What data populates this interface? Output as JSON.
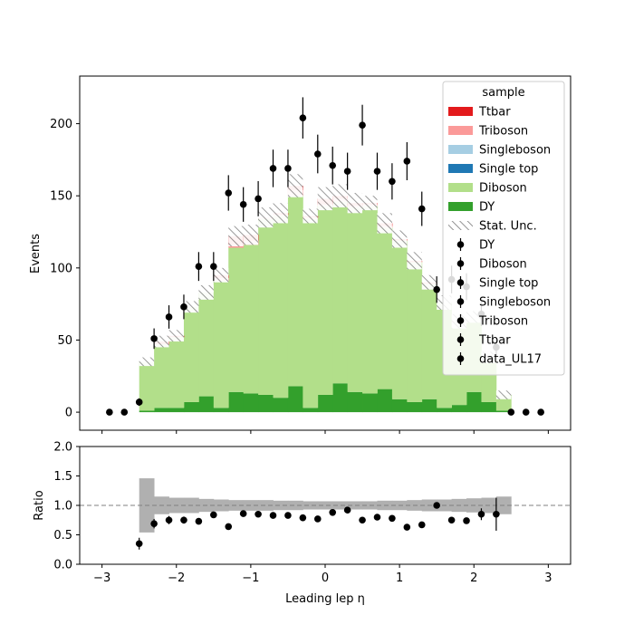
{
  "chart_data": {
    "type": "bar",
    "main": {
      "ylabel": "Events",
      "xlim": [
        -3.3,
        3.3
      ],
      "ylim": [
        -12.5,
        233
      ],
      "yticks": [
        0,
        50,
        100,
        150,
        200
      ],
      "bin_edges": [
        -2.5,
        -2.3,
        -2.1,
        -1.9,
        -1.7,
        -1.5,
        -1.3,
        -1.1,
        -0.9,
        -0.7,
        -0.5,
        -0.3,
        -0.1,
        0.1,
        0.3,
        0.5,
        0.7,
        0.9,
        1.1,
        1.3,
        1.5,
        1.7,
        1.9,
        2.1,
        2.3,
        2.5
      ],
      "stack": [
        {
          "name": "DY",
          "color": "#33a02c",
          "values": [
            1,
            3,
            3,
            7,
            11,
            3,
            14,
            13,
            12,
            10,
            18,
            3,
            12,
            20,
            14,
            13,
            16,
            9,
            7,
            9,
            3,
            5,
            14,
            7,
            1
          ]
        },
        {
          "name": "Diboson",
          "color": "#b2df8a",
          "values": [
            34,
            44,
            49,
            66,
            72,
            88,
            100,
            103,
            122,
            126,
            132,
            131,
            131,
            126,
            128,
            130,
            112,
            110,
            97,
            80,
            73,
            57,
            51,
            31,
            11
          ]
        },
        {
          "name": "Single top",
          "color": "#1f78b4",
          "values": [
            0,
            0,
            0,
            0,
            0,
            0,
            0,
            0,
            0,
            0,
            0,
            0,
            0,
            0,
            0,
            0,
            0,
            0,
            0,
            0,
            0,
            0,
            0,
            0,
            0
          ]
        },
        {
          "name": "Singleboson",
          "color": "#a6cee3",
          "values": [
            0,
            0,
            0,
            0,
            0,
            0,
            0,
            0,
            0,
            0,
            0,
            0,
            0,
            0,
            0,
            0,
            0,
            0,
            0,
            0,
            0,
            0,
            0,
            0,
            0
          ]
        },
        {
          "name": "Triboson",
          "color": "#fb9a99",
          "values": [
            0,
            0,
            0,
            0,
            0,
            2,
            2,
            3,
            1,
            1,
            4,
            1,
            1,
            2,
            1,
            1,
            1,
            0,
            0,
            0,
            0,
            0,
            1,
            0,
            0
          ]
        },
        {
          "name": "Ttbar",
          "color": "#e31a1c",
          "values": [
            0,
            2,
            1,
            0,
            0,
            2,
            6,
            4,
            0,
            1,
            3,
            1,
            4,
            2,
            2,
            1,
            2,
            1,
            1,
            1,
            0,
            1,
            0,
            0,
            0
          ]
        }
      ],
      "stat_unc": [
        3,
        4,
        4,
        4,
        5,
        5,
        7,
        7,
        7,
        7,
        8,
        5,
        8,
        8,
        7,
        5,
        7,
        6,
        6,
        5,
        5,
        5,
        4,
        4,
        3
      ],
      "data": {
        "name": "data_UL17",
        "x": [
          -2.9,
          -2.7,
          -2.5,
          -2.3,
          -2.1,
          -1.9,
          -1.7,
          -1.5,
          -1.3,
          -1.1,
          -0.9,
          -0.7,
          -0.5,
          -0.3,
          -0.1,
          0.1,
          0.3,
          0.5,
          0.7,
          0.9,
          1.1,
          1.3,
          1.5,
          1.7,
          1.9,
          2.1,
          2.3,
          2.5,
          2.7,
          2.9
        ],
        "y": [
          0,
          0,
          7,
          51,
          66,
          73,
          101,
          101,
          152,
          144,
          148,
          169,
          169,
          204,
          179,
          171,
          167,
          199,
          167,
          160,
          174,
          141,
          85,
          92,
          87,
          68,
          45,
          0,
          0,
          0
        ],
        "err": [
          0,
          0,
          2.6,
          7.1,
          8.1,
          8.5,
          10,
          10,
          12.3,
          12,
          12.2,
          13,
          13,
          14.3,
          13.4,
          13.1,
          12.9,
          14.1,
          12.9,
          12.6,
          13.2,
          11.9,
          9.2,
          9.6,
          9.3,
          8.2,
          6.7,
          0,
          0,
          0
        ]
      },
      "legend_title": "sample",
      "legend_position": "upper right",
      "legend_entries": [
        {
          "label": "Ttbar",
          "kind": "patch",
          "color": "#e31a1c"
        },
        {
          "label": "Triboson",
          "kind": "patch",
          "color": "#fb9a99"
        },
        {
          "label": "Singleboson",
          "kind": "patch",
          "color": "#a6cee3"
        },
        {
          "label": "Single top",
          "kind": "patch",
          "color": "#1f78b4"
        },
        {
          "label": "Diboson",
          "kind": "patch",
          "color": "#b2df8a"
        },
        {
          "label": "DY",
          "kind": "patch",
          "color": "#33a02c"
        },
        {
          "label": "Stat. Unc.",
          "kind": "hatch",
          "color": "#888888"
        },
        {
          "label": "DY",
          "kind": "point",
          "color": "#000000"
        },
        {
          "label": "Diboson",
          "kind": "point",
          "color": "#000000"
        },
        {
          "label": "Single top",
          "kind": "point",
          "color": "#000000"
        },
        {
          "label": "Singleboson",
          "kind": "point",
          "color": "#000000"
        },
        {
          "label": "Triboson",
          "kind": "point",
          "color": "#000000"
        },
        {
          "label": "Ttbar",
          "kind": "point",
          "color": "#000000"
        },
        {
          "label": "data_UL17",
          "kind": "point",
          "color": "#000000"
        }
      ]
    },
    "ratio": {
      "ylabel": "Ratio",
      "xlabel": "Leading lep η",
      "ylim": [
        0.0,
        2.0
      ],
      "yticks": [
        "0.0",
        "0.5",
        "1.0",
        "1.5",
        "2.0"
      ],
      "xticks": [
        -3,
        -2,
        -1,
        0,
        1,
        2,
        3
      ],
      "reference_line": 1.0,
      "unc_band": [
        0.46,
        0.15,
        0.13,
        0.13,
        0.11,
        0.1,
        0.09,
        0.09,
        0.09,
        0.08,
        0.08,
        0.07,
        0.07,
        0.07,
        0.07,
        0.07,
        0.08,
        0.08,
        0.09,
        0.1,
        0.1,
        0.11,
        0.12,
        0.13,
        0.15
      ],
      "band_color": "#b0b0b0",
      "points": {
        "x": [
          -2.5,
          -2.3,
          -2.1,
          -1.9,
          -1.7,
          -1.5,
          -1.3,
          -1.1,
          -0.9,
          -0.7,
          -0.5,
          -0.3,
          -0.1,
          0.1,
          0.3,
          0.5,
          0.7,
          0.9,
          1.1,
          1.3,
          1.5,
          1.7,
          1.9,
          2.1,
          2.3
        ],
        "y": [
          0.35,
          0.69,
          0.75,
          0.75,
          0.73,
          0.84,
          0.64,
          0.86,
          0.85,
          0.83,
          0.83,
          0.79,
          0.77,
          0.88,
          0.92,
          0.75,
          0.8,
          0.78,
          0.63,
          0.67,
          1.0,
          0.75,
          0.74,
          0.85,
          0.85
        ],
        "err": [
          0.1,
          0.08,
          0.07,
          0.06,
          0.05,
          0.05,
          0.05,
          0.04,
          0.04,
          0.04,
          0.04,
          0.04,
          0.04,
          0.04,
          0.04,
          0.04,
          0.04,
          0.04,
          0.04,
          0.04,
          0.05,
          0.05,
          0.05,
          0.1,
          0.28
        ]
      }
    }
  }
}
